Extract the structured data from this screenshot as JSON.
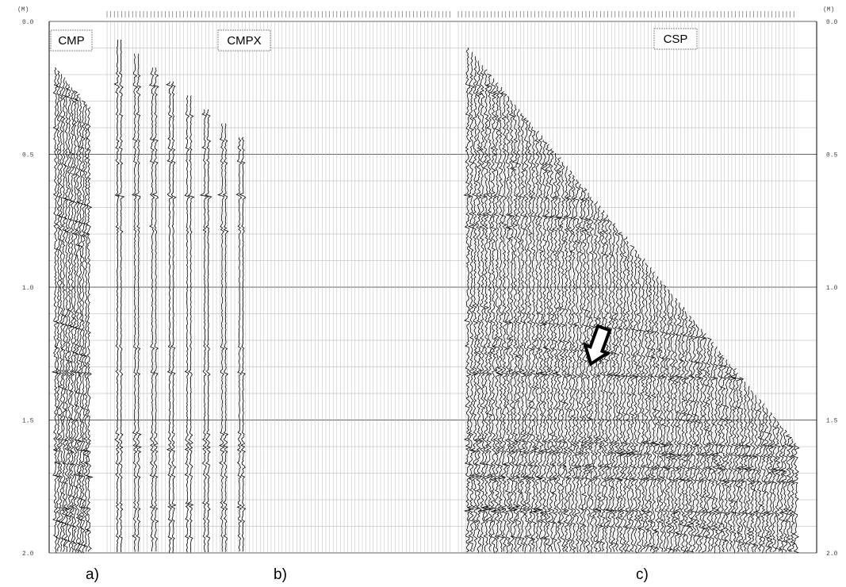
{
  "axis": {
    "unit": "(M)",
    "ticks": [
      "0.0",
      "0.5",
      "1.0",
      "1.5",
      "2.0"
    ]
  },
  "panels": [
    {
      "title": "CMP",
      "caption": "a)"
    },
    {
      "title": "CMPX",
      "caption": "b)"
    },
    {
      "title": "CSP",
      "caption": "c)"
    }
  ]
}
